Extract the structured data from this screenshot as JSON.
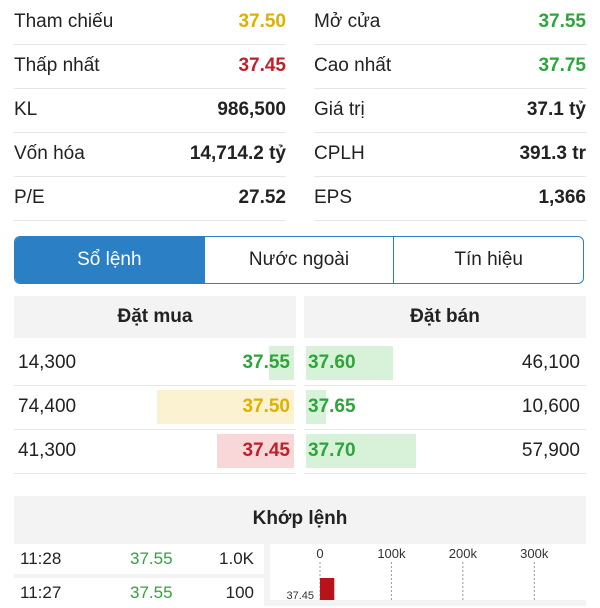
{
  "colors": {
    "ref": "#e0b000",
    "down": "#c0202a",
    "up": "#2ea43a",
    "accent": "#2b7fc4"
  },
  "stats": {
    "left": [
      {
        "label": "Tham chiếu",
        "value": "37.50",
        "color": "#e0b000"
      },
      {
        "label": "Thấp nhất",
        "value": "37.45",
        "color": "#c0202a"
      },
      {
        "label": "KL",
        "value": "986,500",
        "color": "#222222"
      },
      {
        "label": "Vốn hóa",
        "value": "14,714.2 tỷ",
        "color": "#222222"
      },
      {
        "label": "P/E",
        "value": "27.52",
        "color": "#222222"
      }
    ],
    "right": [
      {
        "label": "Mở cửa",
        "value": "37.55",
        "color": "#2ea43a"
      },
      {
        "label": "Cao nhất",
        "value": "37.75",
        "color": "#2ea43a"
      },
      {
        "label": "Giá trị",
        "value": "37.1 tỷ",
        "color": "#222222"
      },
      {
        "label": "CPLH",
        "value": "391.3 tr",
        "color": "#222222"
      },
      {
        "label": "EPS",
        "value": "1,366",
        "color": "#222222"
      }
    ]
  },
  "tabs": [
    {
      "label": "Sổ lệnh",
      "active": true
    },
    {
      "label": "Nước ngoài",
      "active": false
    },
    {
      "label": "Tín hiệu",
      "active": false
    }
  ],
  "orderbook": {
    "buy_title": "Đặt mua",
    "sell_title": "Đặt bán",
    "buy": [
      {
        "volume": "14,300",
        "price": "37.55",
        "color": "#2ea43a",
        "bar_color": "#d8f2da",
        "bar_frac": 0.18
      },
      {
        "volume": "74,400",
        "price": "37.50",
        "color": "#e0b000",
        "bar_color": "#fbf2d2",
        "bar_frac": 0.98
      },
      {
        "volume": "41,300",
        "price": "37.45",
        "color": "#c0202a",
        "bar_color": "#f8d7d9",
        "bar_frac": 0.55
      }
    ],
    "sell": [
      {
        "volume": "46,100",
        "price": "37.60",
        "color": "#2ea43a",
        "bar_color": "#d8f2da",
        "bar_frac": 0.6
      },
      {
        "volume": "10,600",
        "price": "37.65",
        "color": "#2ea43a",
        "bar_color": "#d8f2da",
        "bar_frac": 0.14
      },
      {
        "volume": "57,900",
        "price": "37.70",
        "color": "#2ea43a",
        "bar_color": "#d8f2da",
        "bar_frac": 0.76
      }
    ]
  },
  "matched": {
    "title": "Khớp lệnh",
    "rows": [
      {
        "time": "11:28",
        "price": "37.55",
        "volume": "1.0K"
      },
      {
        "time": "11:27",
        "price": "37.55",
        "volume": "100"
      }
    ],
    "chart": {
      "ticks": [
        "0",
        "100k",
        "200k",
        "300k"
      ],
      "tick_values": [
        0,
        100000,
        200000,
        300000
      ],
      "price_label": "37.45",
      "bar_color": "#b8121b",
      "bar_value": 20000
    }
  }
}
